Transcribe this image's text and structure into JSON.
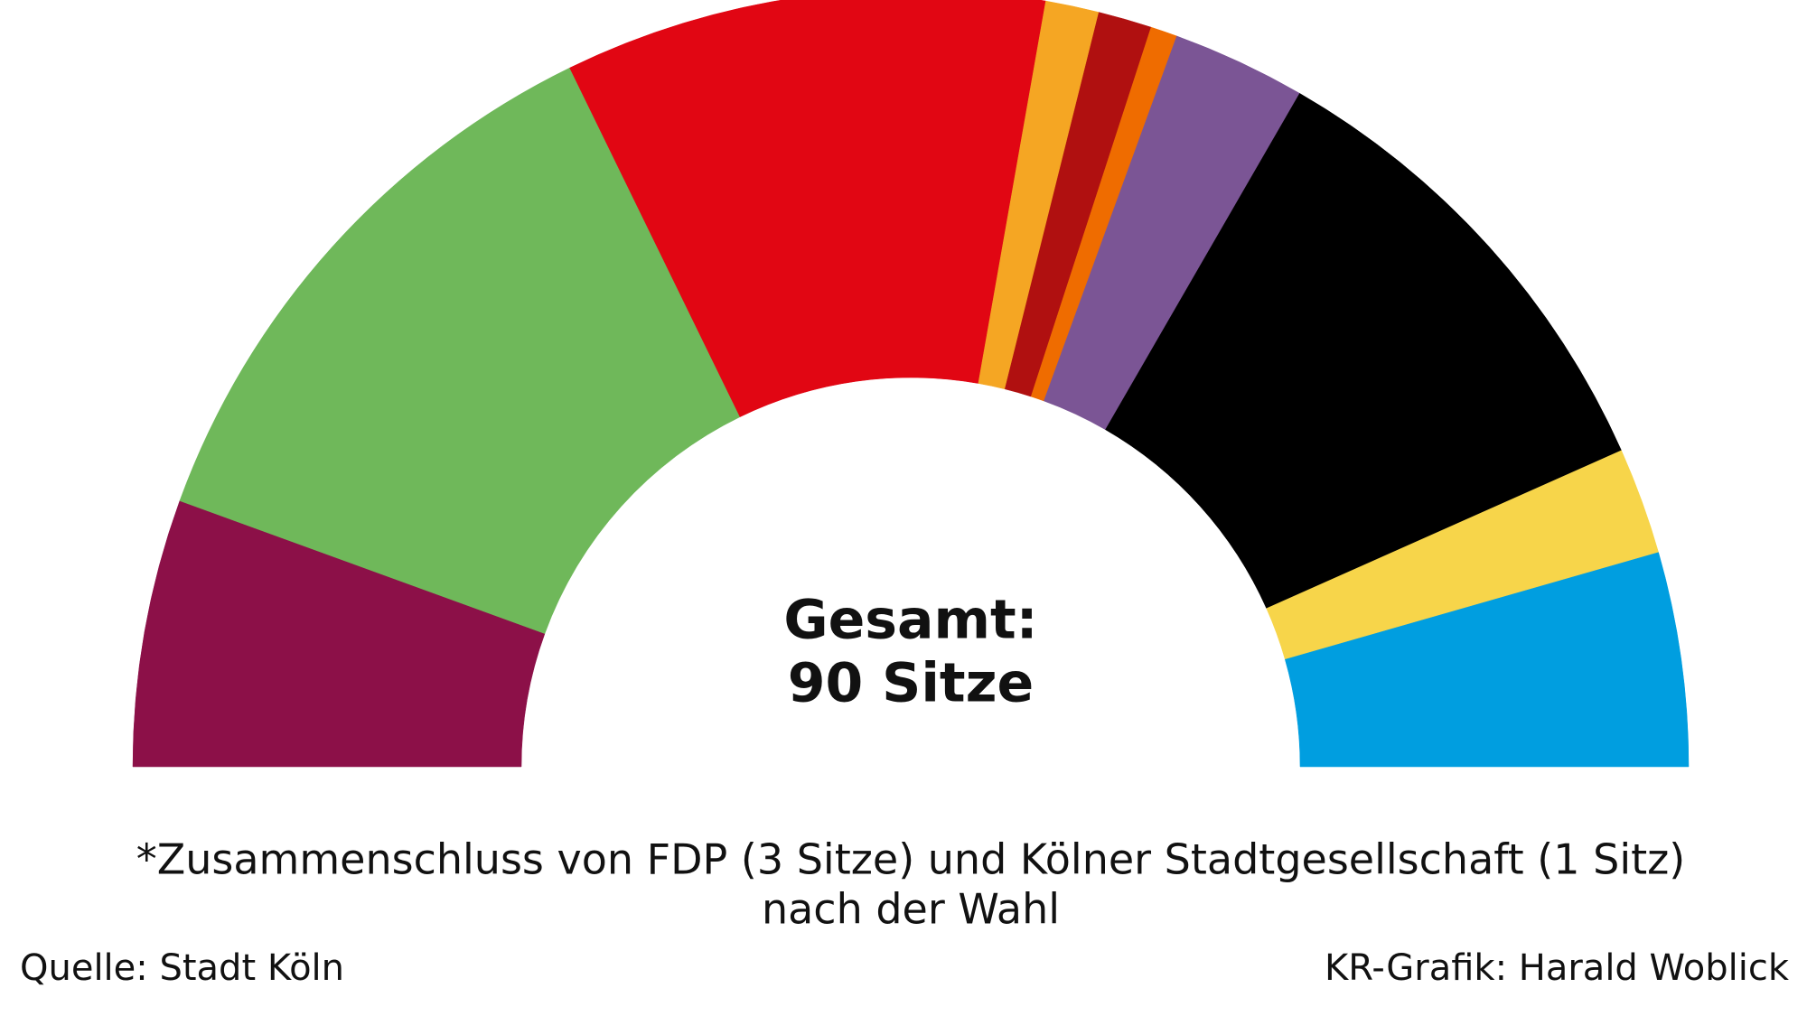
{
  "chart_data": {
    "type": "half-donut",
    "center_label": "Gesamt:",
    "center_value": "90 Sitze",
    "values": [
      10,
      22,
      18,
      2,
      2,
      1,
      5,
      18,
      4,
      8
    ],
    "colors": [
      "#8c1048",
      "#6fb85a",
      "#e10613",
      "#f5a623",
      "#b01010",
      "#ef6c00",
      "#7b5595",
      "#000000",
      "#f7d54a",
      "#009ee0"
    ],
    "footnote": [
      "*Zusammenschluss von FDP (3 Sitze) und Kölner Stadtgesellschaft (1 Sitz)",
      "nach der Wahl"
    ],
    "source": "Quelle: Stadt Köln",
    "credit": "KR-Grafik: Harald Woblick"
  }
}
